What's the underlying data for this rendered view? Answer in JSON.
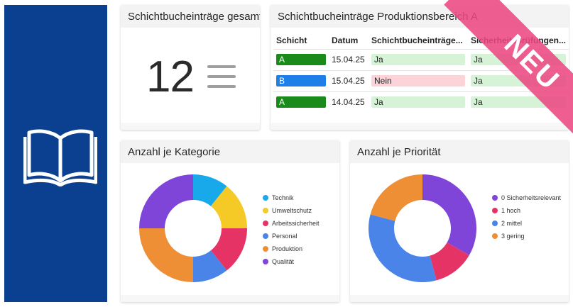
{
  "sidebar": {
    "icon": "book-open-icon",
    "background": "#0b3f8f"
  },
  "cards": {
    "total": {
      "title": "Schichtbucheinträge gesamt",
      "count": "12",
      "icon": "list-icon"
    },
    "table": {
      "title": "Schichtbucheinträge Produktionsbereich A",
      "columns": [
        "Schicht",
        "Datum",
        "Schichtbucheinträge...",
        "Sicherheitsprüfungen..."
      ],
      "rows": [
        {
          "shift": "A",
          "date": "15.04.25",
          "entry": "Ja",
          "check": "Ja"
        },
        {
          "shift": "B",
          "date": "15.04.25",
          "entry": "Nein",
          "check": "Ja"
        },
        {
          "shift": "A",
          "date": "14.04.25",
          "entry": "Ja",
          "check": "Ja"
        }
      ]
    },
    "category": {
      "title": "Anzahl je Kategorie"
    },
    "priority": {
      "title": "Anzahl je Priorität"
    }
  },
  "ribbon": {
    "label": "NEU",
    "color": "#ec4882"
  },
  "chart_data": [
    {
      "type": "pie",
      "title": "Anzahl je Kategorie",
      "categories": [
        "Technik",
        "Umweltschutz",
        "Arbeitssicherheit",
        "Personal",
        "Produktion",
        "Qualität"
      ],
      "values": [
        1.5,
        2,
        2,
        1.5,
        3.5,
        3.5
      ],
      "colors": [
        "#17a9ea",
        "#f5c926",
        "#e63366",
        "#4a84e8",
        "#ee8e35",
        "#7f45d9"
      ],
      "legend": "right"
    },
    {
      "type": "pie",
      "title": "Anzahl je Priorität",
      "categories": [
        "0 Sicherheitsrelevant",
        "1 hoch",
        "2 mittel",
        "3 gering"
      ],
      "values": [
        4,
        1.5,
        4,
        2.5
      ],
      "colors": [
        "#7f45d9",
        "#e63366",
        "#4a84e8",
        "#ee8e35"
      ],
      "legend": "right"
    }
  ]
}
